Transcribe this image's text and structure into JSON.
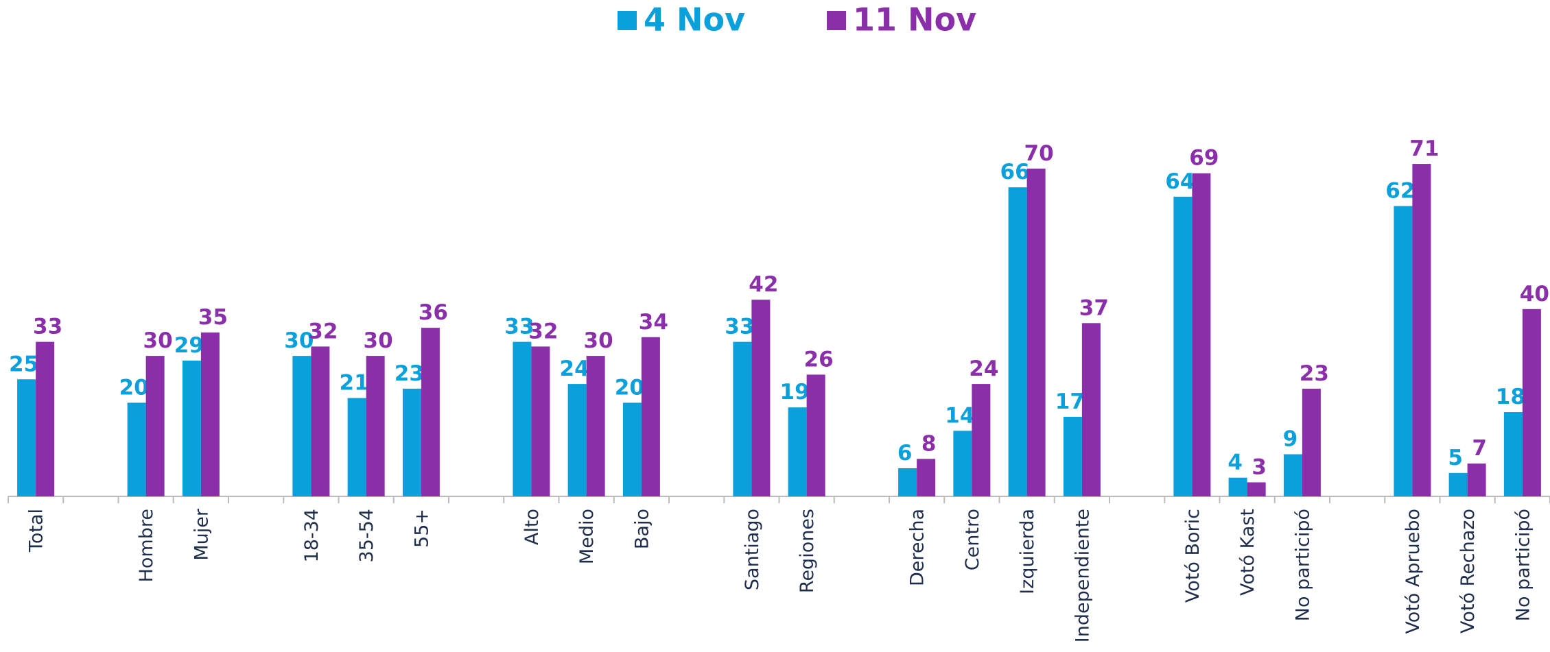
{
  "chart_data": {
    "type": "bar",
    "categories": [
      "Total",
      null,
      "Hombre",
      "Mujer",
      null,
      "18-34",
      "35-54",
      "55+",
      null,
      "Alto",
      "Medio",
      "Bajo",
      null,
      "Santiago",
      "Regiones",
      null,
      "Derecha",
      "Centro",
      "Izquierda",
      "Independiente",
      null,
      "Votó Boric",
      "Votó Kast",
      "No participó",
      null,
      "Votó Apruebo",
      "Votó Rechazo",
      "No participó"
    ],
    "series": [
      {
        "name": "4 Nov",
        "color": "#0aa0dc",
        "values": [
          25,
          null,
          20,
          29,
          null,
          30,
          21,
          23,
          null,
          33,
          24,
          20,
          null,
          33,
          19,
          null,
          6,
          14,
          66,
          17,
          null,
          64,
          4,
          9,
          null,
          62,
          5,
          18
        ]
      },
      {
        "name": "11 Nov",
        "color": "#8a2eaa",
        "values": [
          33,
          null,
          30,
          35,
          null,
          32,
          30,
          36,
          null,
          32,
          30,
          34,
          null,
          42,
          26,
          null,
          8,
          24,
          70,
          37,
          null,
          69,
          3,
          23,
          null,
          71,
          7,
          40
        ]
      }
    ],
    "ylim": [
      0,
      100
    ],
    "legend": "top"
  }
}
